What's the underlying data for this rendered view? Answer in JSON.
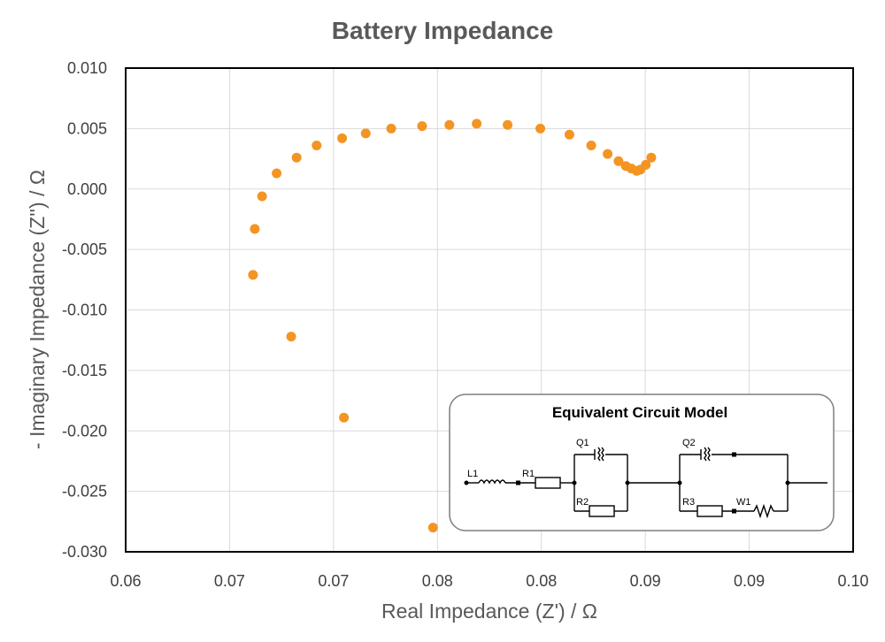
{
  "chart_data": {
    "type": "scatter",
    "title": "Battery Impedance",
    "xlabel": "Real Impedance (Z') / Ω",
    "ylabel": "- Imaginary Impedance (Z'') / Ω",
    "xlim": [
      0.06,
      0.1
    ],
    "ylim": [
      -0.03,
      0.01
    ],
    "x_tick_labels": [
      "0.06",
      "0.07",
      "0.07",
      "0.08",
      "0.08",
      "0.09",
      "0.09",
      "0.10"
    ],
    "y_tick_labels": [
      "0.010",
      "0.005",
      "0.000",
      "-0.005",
      "-0.010",
      "-0.015",
      "-0.020",
      "-0.025",
      "-0.030"
    ],
    "grid": true,
    "legend": "none",
    "series": [
      {
        "color": "#f39423",
        "points": [
          {
            "x": 0.0769,
            "y": -0.028
          },
          {
            "x": 0.072,
            "y": -0.0189
          },
          {
            "x": 0.0691,
            "y": -0.0122
          },
          {
            "x": 0.067,
            "y": -0.0071
          },
          {
            "x": 0.0671,
            "y": -0.0033
          },
          {
            "x": 0.0675,
            "y": -0.0006
          },
          {
            "x": 0.0683,
            "y": 0.0013
          },
          {
            "x": 0.0694,
            "y": 0.0026
          },
          {
            "x": 0.0705,
            "y": 0.0036
          },
          {
            "x": 0.0719,
            "y": 0.0042
          },
          {
            "x": 0.0732,
            "y": 0.0046
          },
          {
            "x": 0.0746,
            "y": 0.005
          },
          {
            "x": 0.0763,
            "y": 0.0052
          },
          {
            "x": 0.0778,
            "y": 0.0053
          },
          {
            "x": 0.0793,
            "y": 0.0054
          },
          {
            "x": 0.081,
            "y": 0.0053
          },
          {
            "x": 0.0828,
            "y": 0.005
          },
          {
            "x": 0.0844,
            "y": 0.0045
          },
          {
            "x": 0.0856,
            "y": 0.0036
          },
          {
            "x": 0.0865,
            "y": 0.0029
          },
          {
            "x": 0.0871,
            "y": 0.0023
          },
          {
            "x": 0.0875,
            "y": 0.0019
          },
          {
            "x": 0.0878,
            "y": 0.0017
          },
          {
            "x": 0.0881,
            "y": 0.0015
          },
          {
            "x": 0.0883,
            "y": 0.0016
          },
          {
            "x": 0.0886,
            "y": 0.002
          },
          {
            "x": 0.0889,
            "y": 0.0026
          }
        ]
      }
    ],
    "inset": {
      "title": "Equivalent Circuit Model",
      "components": [
        "L1",
        "R1",
        "Q1",
        "R2",
        "Q2",
        "R3",
        "W1"
      ]
    }
  }
}
